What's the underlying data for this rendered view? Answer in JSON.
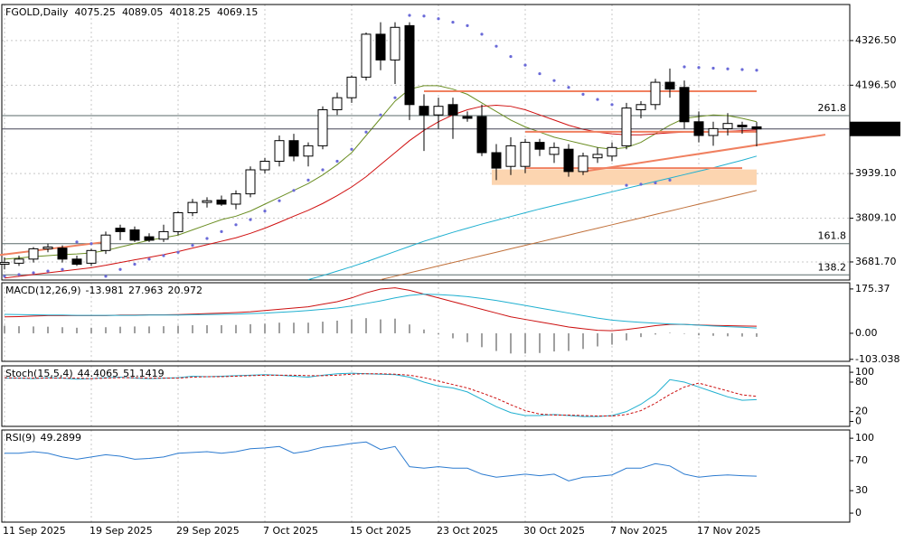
{
  "chart_data": [
    {
      "type": "candlestick",
      "title": "FGOLD,Daily",
      "categories": [
        "11 Sep 2025",
        null,
        null,
        null,
        null,
        null,
        "19 Sep 2025",
        null,
        null,
        null,
        null,
        null,
        "29 Sep 2025",
        null,
        null,
        null,
        null,
        null,
        "7 Oct 2025",
        null,
        null,
        null,
        null,
        null,
        "15 Oct 2025",
        null,
        null,
        null,
        null,
        null,
        "23 Oct 2025",
        null,
        null,
        null,
        null,
        null,
        "30 Oct 2025",
        null,
        null,
        null,
        null,
        null,
        "7 Nov 2025",
        null,
        null,
        null,
        null,
        null,
        "17 Nov 2025",
        null,
        null,
        null,
        null
      ],
      "open": [
        3675,
        3678,
        3690,
        3720,
        3722,
        3690,
        3678,
        3715,
        3780,
        3775,
        3755,
        3748,
        3770,
        3825,
        3855,
        3862,
        3850,
        3880,
        3950,
        3975,
        4035,
        3990,
        4020,
        4125,
        4160,
        4220,
        4345,
        4270,
        4370,
        4135,
        4110,
        4140,
        4105,
        4105,
        4000,
        3960,
        3960,
        4030,
        3995,
        4010,
        3945,
        3985,
        3990,
        4020,
        4125,
        4140,
        4205,
        4190,
        4090,
        4050,
        4070,
        4080,
        4075.25
      ],
      "high": [
        3695,
        3700,
        3725,
        3735,
        3730,
        3700,
        3720,
        3770,
        3790,
        3785,
        3765,
        3790,
        3830,
        3865,
        3870,
        3875,
        3890,
        3960,
        3985,
        4050,
        4055,
        4030,
        4135,
        4175,
        4225,
        4350,
        4380,
        4380,
        4380,
        4170,
        4160,
        4160,
        4120,
        4140,
        4025,
        4045,
        4040,
        4040,
        4030,
        4025,
        4000,
        4015,
        4030,
        4145,
        4150,
        4215,
        4245,
        4210,
        4120,
        4090,
        4115,
        4090,
        4089.05
      ],
      "low": [
        3660,
        3670,
        3680,
        3710,
        3680,
        3670,
        3670,
        3705,
        3745,
        3740,
        3740,
        3740,
        3760,
        3815,
        3840,
        3845,
        3835,
        3870,
        3940,
        3960,
        3975,
        3960,
        4010,
        4110,
        4145,
        4210,
        4240,
        4200,
        4095,
        4005,
        4070,
        4040,
        4090,
        3990,
        3920,
        3935,
        3940,
        3990,
        3970,
        3930,
        3935,
        3970,
        3975,
        4010,
        4100,
        4125,
        4160,
        4070,
        4030,
        4020,
        4050,
        4055,
        4018.25
      ],
      "close": [
        3680,
        3690,
        3720,
        3725,
        3690,
        3675,
        3715,
        3760,
        3770,
        3745,
        3745,
        3770,
        3825,
        3855,
        3860,
        3850,
        3880,
        3950,
        3975,
        4035,
        3990,
        4020,
        4125,
        4160,
        4220,
        4345,
        4270,
        4365,
        4140,
        4110,
        4135,
        4110,
        4100,
        4000,
        3955,
        4020,
        4030,
        4010,
        4015,
        3945,
        3990,
        3995,
        4015,
        4130,
        4140,
        4205,
        4185,
        4090,
        4050,
        4070,
        4085,
        4075,
        4069.15
      ],
      "ylim": [
        3629,
        4431.5
      ],
      "yticks": [
        {
          "value": 4326.5,
          "label": "4326.50"
        },
        {
          "value": 4196.5,
          "label": "4196.50"
        },
        {
          "value": 3939.1,
          "label": "3939.10"
        },
        {
          "value": 3809.1,
          "label": "3809.10"
        },
        {
          "value": 3681.7,
          "label": "3681.70"
        }
      ],
      "grid": true,
      "moving_averages": [
        {
          "color": "#6b8e23",
          "values": [
            3690,
            3693,
            3697,
            3700,
            3703,
            3705,
            3708,
            3715,
            3725,
            3735,
            3745,
            3752,
            3760,
            3775,
            3790,
            3805,
            3815,
            3830,
            3850,
            3870,
            3890,
            3910,
            3935,
            3965,
            4000,
            4050,
            4100,
            4150,
            4185,
            4195,
            4195,
            4185,
            4170,
            4145,
            4120,
            4095,
            4075,
            4060,
            4045,
            4035,
            4025,
            4015,
            4010,
            4015,
            4030,
            4055,
            4080,
            4100,
            4105,
            4110,
            4108,
            4100,
            4090
          ]
        },
        {
          "color": "#d01010",
          "values": [
            3635,
            3640,
            3645,
            3650,
            3655,
            3660,
            3665,
            3672,
            3680,
            3688,
            3695,
            3703,
            3712,
            3722,
            3732,
            3742,
            3752,
            3765,
            3780,
            3797,
            3815,
            3832,
            3852,
            3875,
            3900,
            3930,
            3965,
            4000,
            4035,
            4065,
            4090,
            4110,
            4125,
            4135,
            4138,
            4135,
            4125,
            4110,
            4095,
            4080,
            4068,
            4060,
            4055,
            4052,
            4052,
            4055,
            4058,
            4060,
            4060,
            4060,
            4062,
            4064,
            4066
          ]
        },
        {
          "color": "#20b0d0",
          "values": [
            null,
            null,
            null,
            null,
            null,
            null,
            null,
            null,
            null,
            null,
            null,
            null,
            null,
            null,
            null,
            null,
            null,
            null,
            null,
            null,
            null,
            3630,
            3642,
            3655,
            3668,
            3682,
            3697,
            3712,
            3727,
            3742,
            3755,
            3768,
            3780,
            3792,
            3803,
            3814,
            3825,
            3836,
            3846,
            3856,
            3866,
            3876,
            3886,
            3896,
            3906,
            3916,
            3926,
            3936,
            3946,
            3956,
            3967,
            3978,
            3990
          ]
        },
        {
          "color": "#c0703a",
          "values": [
            null,
            null,
            null,
            null,
            null,
            null,
            null,
            null,
            null,
            null,
            null,
            null,
            null,
            null,
            null,
            null,
            null,
            null,
            null,
            null,
            null,
            null,
            null,
            null,
            null,
            null,
            3630,
            3640,
            3650,
            3660,
            3670,
            3680,
            3690,
            3700,
            3710,
            3720,
            3730,
            3740,
            3750,
            3760,
            3770,
            3780,
            3790,
            3800,
            3810,
            3820,
            3830,
            3840,
            3850,
            3860,
            3870,
            3880,
            3890
          ]
        }
      ],
      "sar": {
        "color": "#6a6ad8",
        "values": [
          3640,
          3645,
          3650,
          3655,
          3660,
          3740,
          3735,
          3640,
          3660,
          3675,
          3690,
          3700,
          3710,
          3730,
          3750,
          3770,
          3790,
          3805,
          3830,
          3860,
          3890,
          3920,
          3950,
          3975,
          4010,
          4060,
          4110,
          4160,
          4400,
          4398,
          4390,
          4380,
          4370,
          4345,
          4310,
          4280,
          4255,
          4230,
          4210,
          4190,
          4170,
          4155,
          4140,
          3905,
          3908,
          3912,
          3920,
          4250,
          4248,
          4246,
          4244,
          4242,
          4240
        ]
      },
      "levels": [
        {
          "value": 4108,
          "label": "261.8"
        },
        {
          "value": 3735,
          "label": "161.8"
        },
        {
          "value": 3644,
          "label": "138.2"
        }
      ],
      "orange_lines": {
        "color": "#f08060",
        "values": [
          4179,
          4061,
          3955
        ]
      },
      "zone": {
        "low": 3906,
        "high": 3951,
        "color": "#fcd5b0"
      },
      "trendlines": [
        [
          3702,
          3740
        ],
        [
          3945,
          4022
        ]
      ]
    },
    {
      "type": "macd",
      "title": "MACD(12,26,9)",
      "histogram": {
        "color": "#a0a0a0",
        "values": [
          30,
          28,
          27,
          26,
          24,
          22,
          22,
          24,
          26,
          27,
          27,
          28,
          30,
          32,
          32,
          32,
          33,
          36,
          38,
          42,
          42,
          42,
          46,
          50,
          55,
          60,
          55,
          58,
          35,
          15,
          -5,
          -20,
          -35,
          -55,
          -70,
          -80,
          -80,
          -78,
          -72,
          -70,
          -62,
          -52,
          -45,
          -28,
          -15,
          -5,
          2,
          -2,
          -8,
          -10,
          -12,
          -13,
          -13.981
        ]
      },
      "series": [
        {
          "color": "#cc1010",
          "values": [
            65,
            66,
            68,
            70,
            70,
            70,
            70,
            70,
            72,
            72,
            73,
            73,
            74,
            76,
            78,
            80,
            82,
            85,
            90,
            95,
            100,
            105,
            115,
            125,
            140,
            160,
            175,
            180,
            170,
            155,
            140,
            125,
            110,
            95,
            80,
            65,
            55,
            45,
            35,
            25,
            18,
            12,
            10,
            15,
            22,
            30,
            35,
            35,
            33,
            31,
            30,
            29,
            27.963
          ]
        },
        {
          "color": "#20b0d0",
          "values": [
            75,
            74,
            73,
            72,
            72,
            71,
            71,
            71,
            71,
            71,
            72,
            72,
            72,
            73,
            74,
            75,
            76,
            78,
            80,
            83,
            86,
            90,
            95,
            100,
            108,
            118,
            128,
            140,
            150,
            155,
            153,
            150,
            145,
            138,
            130,
            120,
            110,
            100,
            90,
            80,
            70,
            60,
            52,
            47,
            43,
            40,
            37,
            35,
            32,
            29,
            26,
            24,
            20.972
          ]
        }
      ],
      "ylim": [
        -111,
        200
      ],
      "yticks": [
        175.37,
        {
          "value": 0,
          "label": "0.00"
        },
        -103.038
      ]
    },
    {
      "type": "line",
      "title": "Stoch(15,5,4)",
      "series": [
        {
          "color": "#20b0d0",
          "values": [
            88,
            88,
            87,
            89,
            88,
            86,
            87,
            89,
            90,
            88,
            87,
            88,
            89,
            92,
            91,
            92,
            93,
            94,
            95,
            94,
            92,
            90,
            94,
            97,
            98,
            97,
            96,
            95,
            90,
            80,
            72,
            68,
            60,
            45,
            30,
            18,
            12,
            12,
            14,
            12,
            10,
            10,
            12,
            20,
            35,
            55,
            85,
            80,
            70,
            60,
            50,
            43,
            44.4065
          ]
        },
        {
          "color": "#cc1010",
          "dashed": true,
          "values": [
            89,
            88,
            88,
            88,
            88,
            88,
            87,
            88,
            89,
            89,
            88,
            88,
            88,
            90,
            91,
            91,
            92,
            93,
            94,
            94,
            94,
            93,
            93,
            94,
            96,
            97,
            97,
            96,
            94,
            89,
            82,
            75,
            68,
            58,
            47,
            34,
            22,
            15,
            13,
            13,
            12,
            11,
            11,
            14,
            22,
            37,
            55,
            70,
            78,
            70,
            62,
            54,
            51.1419
          ]
        }
      ],
      "ylim": [
        -10,
        113
      ],
      "yticks": [
        100,
        80,
        20,
        0
      ]
    },
    {
      "type": "line",
      "title": "RSI(9)",
      "series": [
        {
          "color": "#2c7bd0",
          "values": [
            80,
            80,
            82,
            80,
            75,
            72,
            75,
            78,
            76,
            72,
            73,
            75,
            80,
            81,
            82,
            80,
            82,
            86,
            87,
            89,
            80,
            83,
            88,
            90,
            93,
            95,
            85,
            89,
            62,
            60,
            62,
            60,
            60,
            52,
            48,
            50,
            52,
            50,
            52,
            43,
            48,
            49,
            51,
            60,
            60,
            66,
            63,
            52,
            48,
            50,
            51,
            50,
            49.2899
          ]
        }
      ],
      "ylim": [
        -12,
        111
      ],
      "yticks": [
        100,
        70,
        30,
        0
      ]
    }
  ]
}
